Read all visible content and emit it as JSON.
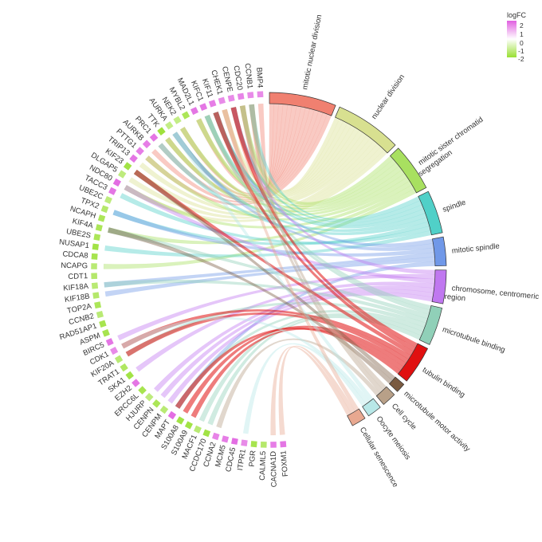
{
  "chart_data": {
    "type": "chord",
    "title": "",
    "legend": {
      "title": "logFC",
      "ticks": [
        "2",
        "1",
        "0",
        "-1",
        "-2"
      ],
      "colors": {
        "high": "#e060e0",
        "mid": "#ffffff",
        "low": "#99e033"
      },
      "position": "top-right"
    },
    "terms": [
      {
        "name": "mitotic nuclear division",
        "color": "#f08070",
        "span": 14
      },
      {
        "name": "nuclear division",
        "color": "#d8e090",
        "span": 14
      },
      {
        "name": "mitotic sister chromatid\nsegregation",
        "color": "#a8e060",
        "span": 10
      },
      {
        "name": "spindle",
        "color": "#50d0c8",
        "span": 9
      },
      {
        "name": "mitotic spindle",
        "color": "#7098e8",
        "span": 6
      },
      {
        "name": "chromosome, centromeric\nregion",
        "color": "#c078f0",
        "span": 7
      },
      {
        "name": "microtubule binding",
        "color": "#90d0b8",
        "span": 8
      },
      {
        "name": "tubulin binding",
        "color": "#e01010",
        "span": 8
      },
      {
        "name": "microtubule motor activity",
        "color": "#7a5a40",
        "span": 2
      },
      {
        "name": "Cell cycle",
        "color": "#b8a088",
        "span": 3
      },
      {
        "name": "Oocyte meiosis",
        "color": "#b8e8e8",
        "span": 3
      },
      {
        "name": "Cellular senescence",
        "color": "#e8a890",
        "span": 3
      }
    ],
    "genes": [
      {
        "name": "BMP4",
        "logFC": 1.6
      },
      {
        "name": "CCNB1",
        "logFC": 1.6
      },
      {
        "name": "CDC20",
        "logFC": 1.7
      },
      {
        "name": "CENPE",
        "logFC": 1.6
      },
      {
        "name": "CHEK1",
        "logFC": 1.6
      },
      {
        "name": "KIF11",
        "logFC": 1.8
      },
      {
        "name": "KIFC1",
        "logFC": 1.9
      },
      {
        "name": "MAD2L1",
        "logFC": 1.9
      },
      {
        "name": "MYBL2",
        "logFC": -1.8
      },
      {
        "name": "NEK2",
        "logFC": -1.3
      },
      {
        "name": "AURKA",
        "logFC": -1.3
      },
      {
        "name": "TTK",
        "logFC": -2.1
      },
      {
        "name": "PRC1",
        "logFC": 1.9
      },
      {
        "name": "AURKB",
        "logFC": 1.8
      },
      {
        "name": "PTTG1",
        "logFC": 1.8
      },
      {
        "name": "TRIP13",
        "logFC": 1.9
      },
      {
        "name": "KIF23",
        "logFC": -2.0
      },
      {
        "name": "DLGAP5",
        "logFC": -1.4
      },
      {
        "name": "NDC80",
        "logFC": 2.0
      },
      {
        "name": "TACC3",
        "logFC": 1.9
      },
      {
        "name": "UBE2C",
        "logFC": -1.4
      },
      {
        "name": "TPX2",
        "logFC": -1.6
      },
      {
        "name": "NCAPH",
        "logFC": -1.8
      },
      {
        "name": "KIF4A",
        "logFC": -1.8
      },
      {
        "name": "UBE2S",
        "logFC": -1.8
      },
      {
        "name": "NUSAP1",
        "logFC": -2.0
      },
      {
        "name": "CDCA8",
        "logFC": -1.9
      },
      {
        "name": "NCAPG",
        "logFC": -1.5
      },
      {
        "name": "CDT1",
        "logFC": -1.6
      },
      {
        "name": "KIF18A",
        "logFC": -1.5
      },
      {
        "name": "KIF18B",
        "logFC": -1.6
      },
      {
        "name": "TOP2A",
        "logFC": -1.8
      },
      {
        "name": "CCNB2",
        "logFC": -1.5
      },
      {
        "name": "RAD51AP1",
        "logFC": -1.9
      },
      {
        "name": "ASPM",
        "logFC": -1.9
      },
      {
        "name": "BIRC5",
        "logFC": 1.9
      },
      {
        "name": "CDK1",
        "logFC": 1.6
      },
      {
        "name": "KIF20A",
        "logFC": -1.5
      },
      {
        "name": "TRAT1",
        "logFC": -1.7
      },
      {
        "name": "SKA1",
        "logFC": -2.0
      },
      {
        "name": "EZH2",
        "logFC": 1.9
      },
      {
        "name": "ERCC6L",
        "logFC": -1.9
      },
      {
        "name": "HJURP",
        "logFC": -1.4
      },
      {
        "name": "CENPN",
        "logFC": -1.8
      },
      {
        "name": "CENPM",
        "logFC": -1.5
      },
      {
        "name": "MAPT",
        "logFC": 2.0
      },
      {
        "name": "S100A8",
        "logFC": -2.0
      },
      {
        "name": "S100A9",
        "logFC": -2.0
      },
      {
        "name": "MACF1",
        "logFC": -1.5
      },
      {
        "name": "CCDC170",
        "logFC": -2.0
      },
      {
        "name": "CCNA2",
        "logFC": 1.7
      },
      {
        "name": "MCM5",
        "logFC": 1.8
      },
      {
        "name": "CDC45",
        "logFC": 2.0
      },
      {
        "name": "ITPR1",
        "logFC": 1.6
      },
      {
        "name": "PGR",
        "logFC": -1.9
      },
      {
        "name": "CALML5",
        "logFC": -1.6
      },
      {
        "name": "CACNA1D",
        "logFC": 1.8
      },
      {
        "name": "FOXM1",
        "logFC": 1.9
      }
    ],
    "links": [
      [
        "BMP4",
        "mitotic nuclear division"
      ],
      [
        "CCNB1",
        "mitotic nuclear division"
      ],
      [
        "CDC20",
        "mitotic nuclear division"
      ],
      [
        "CENPE",
        "mitotic nuclear division"
      ],
      [
        "CHEK1",
        "mitotic nuclear division"
      ],
      [
        "KIF11",
        "mitotic nuclear division"
      ],
      [
        "KIFC1",
        "mitotic nuclear division"
      ],
      [
        "MAD2L1",
        "mitotic nuclear division"
      ],
      [
        "NEK2",
        "mitotic nuclear division"
      ],
      [
        "AURKA",
        "mitotic nuclear division"
      ],
      [
        "TTK",
        "mitotic nuclear division"
      ],
      [
        "PRC1",
        "mitotic nuclear division"
      ],
      [
        "AURKB",
        "mitotic nuclear division"
      ],
      [
        "PTTG1",
        "mitotic nuclear division"
      ],
      [
        "CCNB1",
        "nuclear division"
      ],
      [
        "CDC20",
        "nuclear division"
      ],
      [
        "CENPE",
        "nuclear division"
      ],
      [
        "CHEK1",
        "nuclear division"
      ],
      [
        "KIF11",
        "nuclear division"
      ],
      [
        "KIFC1",
        "nuclear division"
      ],
      [
        "MAD2L1",
        "nuclear division"
      ],
      [
        "NEK2",
        "nuclear division"
      ],
      [
        "AURKA",
        "nuclear division"
      ],
      [
        "TTK",
        "nuclear division"
      ],
      [
        "TRIP13",
        "nuclear division"
      ],
      [
        "KIF23",
        "nuclear division"
      ],
      [
        "DLGAP5",
        "nuclear division"
      ],
      [
        "NDC80",
        "nuclear division"
      ],
      [
        "CDC20",
        "mitotic sister chromatid\nsegregation"
      ],
      [
        "CENPE",
        "mitotic sister chromatid\nsegregation"
      ],
      [
        "KIF11",
        "mitotic sister chromatid\nsegregation"
      ],
      [
        "MAD2L1",
        "mitotic sister chromatid\nsegregation"
      ],
      [
        "NEK2",
        "mitotic sister chromatid\nsegregation"
      ],
      [
        "TTK",
        "mitotic sister chromatid\nsegregation"
      ],
      [
        "PTTG1",
        "mitotic sister chromatid\nsegregation"
      ],
      [
        "NDC80",
        "mitotic sister chromatid\nsegregation"
      ],
      [
        "KIF4A",
        "mitotic sister chromatid\nsegregation"
      ],
      [
        "NCAPG",
        "mitotic sister chromatid\nsegregation"
      ],
      [
        "CCNB1",
        "spindle"
      ],
      [
        "CENPE",
        "spindle"
      ],
      [
        "KIF11",
        "spindle"
      ],
      [
        "KIFC1",
        "spindle"
      ],
      [
        "AURKA",
        "spindle"
      ],
      [
        "PRC1",
        "spindle"
      ],
      [
        "TPX2",
        "spindle"
      ],
      [
        "TACC3",
        "spindle"
      ],
      [
        "NUSAP1",
        "spindle"
      ],
      [
        "KIF11",
        "mitotic spindle"
      ],
      [
        "AURKA",
        "mitotic spindle"
      ],
      [
        "TPX2",
        "mitotic spindle"
      ],
      [
        "KIF18A",
        "mitotic spindle"
      ],
      [
        "KIF18B",
        "mitotic spindle"
      ],
      [
        "MAPT",
        "mitotic spindle"
      ],
      [
        "CENPE",
        "chromosome, centromeric\nregion"
      ],
      [
        "BIRC5",
        "chromosome, centromeric\nregion"
      ],
      [
        "NDC80",
        "chromosome, centromeric\nregion"
      ],
      [
        "SKA1",
        "chromosome, centromeric\nregion"
      ],
      [
        "HJURP",
        "chromosome, centromeric\nregion"
      ],
      [
        "CENPN",
        "chromosome, centromeric\nregion"
      ],
      [
        "CENPM",
        "chromosome, centromeric\nregion"
      ],
      [
        "KIF11",
        "microtubule binding"
      ],
      [
        "KIFC1",
        "microtubule binding"
      ],
      [
        "KIF4A",
        "microtubule binding"
      ],
      [
        "KIF18A",
        "microtubule binding"
      ],
      [
        "KIF20A",
        "microtubule binding"
      ],
      [
        "MAPT",
        "microtubule binding"
      ],
      [
        "MACF1",
        "microtubule binding"
      ],
      [
        "CCDC170",
        "microtubule binding"
      ],
      [
        "CENPE",
        "tubulin binding"
      ],
      [
        "KIF11",
        "tubulin binding"
      ],
      [
        "KIF23",
        "tubulin binding"
      ],
      [
        "CDK1",
        "tubulin binding"
      ],
      [
        "KIF20A",
        "tubulin binding"
      ],
      [
        "S100A8",
        "tubulin binding"
      ],
      [
        "S100A9",
        "tubulin binding"
      ],
      [
        "MAPT",
        "tubulin binding"
      ],
      [
        "KIF23",
        "microtubule motor activity"
      ],
      [
        "KIF4A",
        "microtubule motor activity"
      ],
      [
        "CCNB1",
        "Cell cycle"
      ],
      [
        "CDC20",
        "Cell cycle"
      ],
      [
        "CCNA2",
        "Cell cycle"
      ],
      [
        "AURKA",
        "Oocyte meiosis"
      ],
      [
        "CDK1",
        "Oocyte meiosis"
      ],
      [
        "ITPR1",
        "Oocyte meiosis"
      ],
      [
        "CHEK1",
        "Cellular senescence"
      ],
      [
        "FOXM1",
        "Cellular senescence"
      ],
      [
        "CACNA1D",
        "Cellular senescence"
      ]
    ]
  }
}
